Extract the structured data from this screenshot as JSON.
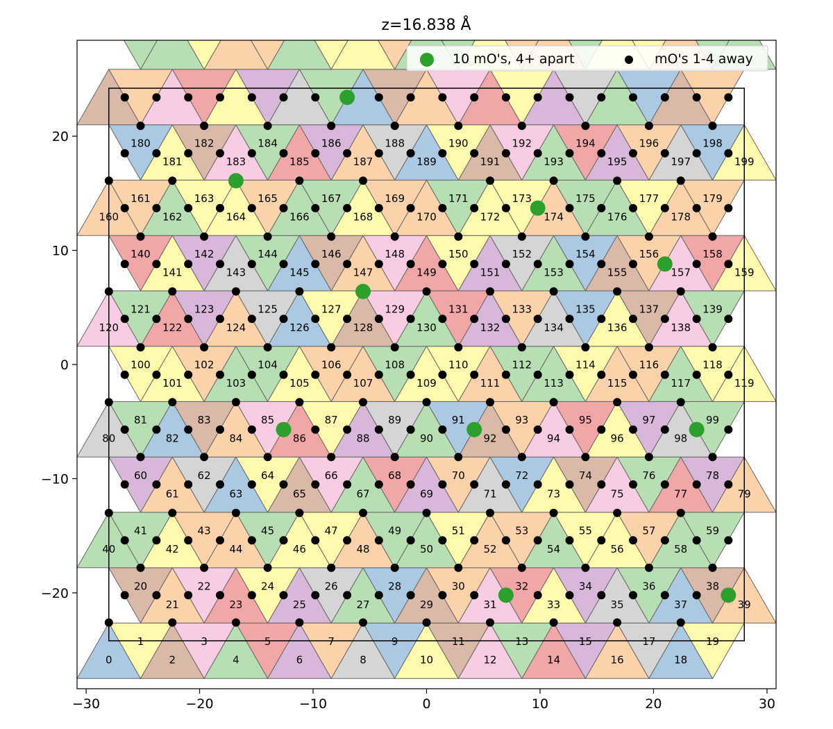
{
  "chart_data": {
    "type": "scatter",
    "title": "z=16.838 Å",
    "xlim": [
      -30.8,
      30.8
    ],
    "ylim": [
      -28.4,
      28.4
    ],
    "xticks": [
      -30,
      -20,
      -10,
      0,
      10,
      20,
      30
    ],
    "yticks": [
      -20,
      -10,
      0,
      10,
      20
    ],
    "xtick_labels": [
      "−30",
      "−20",
      "−10",
      "0",
      "10",
      "20",
      "30"
    ],
    "ytick_labels": [
      "−20",
      "−10",
      "0",
      "10",
      "20"
    ],
    "cell_box": {
      "x": [
        -28.0,
        28.0
      ],
      "y": [
        -24.2,
        24.2
      ]
    },
    "triangle_lattice": {
      "triangle_side": 5.6,
      "row_height": 4.85,
      "rows": 13,
      "first_row_base_y": -27.5,
      "triangles_per_row": 20,
      "first_triangle_left_x": -30.8,
      "row_shift_per_row": 0.5,
      "label_count": 200,
      "palette": [
        "#a6c6e0",
        "#b4dcb0",
        "#d3d3d3",
        "#f8c9e2",
        "#fbd0a4",
        "#d8b5a3",
        "#d6b3d8",
        "#fffbaa",
        "#f0a2a2"
      ],
      "fill_alpha": 0.95,
      "edge_color": "#666666"
    },
    "series": [
      {
        "name": "10 mO's, 4+ apart",
        "color": "#2ca02c",
        "marker": "large circle",
        "points": [
          [
            -7.0,
            23.4
          ],
          [
            -16.8,
            16.1
          ],
          [
            9.8,
            13.7
          ],
          [
            21.0,
            8.8
          ],
          [
            -5.6,
            6.4
          ],
          [
            -12.6,
            -5.7
          ],
          [
            4.2,
            -5.7
          ],
          [
            23.8,
            -5.7
          ],
          [
            7.0,
            -20.2
          ],
          [
            26.6,
            -20.2
          ]
        ]
      },
      {
        "name": "mO's 1-4 away",
        "color": "#000000",
        "marker": "small circle",
        "points": [
          [
            -26.6,
            23.4
          ],
          [
            -23.8,
            23.4
          ],
          [
            -21.0,
            23.4
          ],
          [
            -18.2,
            23.4
          ],
          [
            -15.4,
            23.4
          ],
          [
            -12.6,
            23.4
          ],
          [
            -9.8,
            23.4
          ],
          [
            -4.2,
            23.4
          ],
          [
            -1.4,
            23.4
          ],
          [
            1.4,
            23.4
          ],
          [
            4.2,
            23.4
          ],
          [
            7.0,
            23.4
          ],
          [
            9.8,
            23.4
          ],
          [
            12.6,
            23.4
          ],
          [
            15.4,
            23.4
          ],
          [
            18.2,
            23.4
          ],
          [
            21.0,
            23.4
          ],
          [
            23.8,
            23.4
          ],
          [
            26.6,
            23.4
          ],
          [
            -25.2,
            20.9
          ],
          [
            -19.6,
            20.9
          ],
          [
            -14.0,
            20.9
          ],
          [
            -8.4,
            20.9
          ],
          [
            -2.8,
            20.9
          ],
          [
            2.8,
            20.9
          ],
          [
            8.4,
            20.9
          ],
          [
            14.0,
            20.9
          ],
          [
            19.6,
            20.9
          ],
          [
            25.2,
            20.9
          ],
          [
            -26.6,
            18.5
          ],
          [
            -23.8,
            18.5
          ],
          [
            -21.0,
            18.5
          ],
          [
            -18.2,
            18.5
          ],
          [
            -15.4,
            18.5
          ],
          [
            -12.6,
            18.5
          ],
          [
            -9.8,
            18.5
          ],
          [
            -7.0,
            18.5
          ],
          [
            -4.2,
            18.5
          ],
          [
            -1.4,
            18.5
          ],
          [
            1.4,
            18.5
          ],
          [
            4.2,
            18.5
          ],
          [
            7.0,
            18.5
          ],
          [
            9.8,
            18.5
          ],
          [
            12.6,
            18.5
          ],
          [
            15.4,
            18.5
          ],
          [
            18.2,
            18.5
          ],
          [
            21.0,
            18.5
          ],
          [
            23.8,
            18.5
          ],
          [
            26.6,
            18.5
          ],
          [
            -28.0,
            16.1
          ],
          [
            -22.4,
            16.1
          ],
          [
            -11.2,
            16.1
          ],
          [
            -5.6,
            16.1
          ],
          [
            5.6,
            16.1
          ],
          [
            11.2,
            16.1
          ],
          [
            16.8,
            16.1
          ],
          [
            22.4,
            16.1
          ],
          [
            -26.6,
            13.7
          ],
          [
            -23.8,
            13.7
          ],
          [
            -21.0,
            13.7
          ],
          [
            -18.2,
            13.7
          ],
          [
            -15.4,
            13.7
          ],
          [
            -12.6,
            13.7
          ],
          [
            -9.8,
            13.7
          ],
          [
            -7.0,
            13.7
          ],
          [
            -4.2,
            13.7
          ],
          [
            -1.4,
            13.7
          ],
          [
            1.4,
            13.7
          ],
          [
            4.2,
            13.7
          ],
          [
            7.0,
            13.7
          ],
          [
            12.6,
            13.7
          ],
          [
            15.4,
            13.7
          ],
          [
            18.2,
            13.7
          ],
          [
            21.0,
            13.7
          ],
          [
            23.8,
            13.7
          ],
          [
            26.6,
            13.7
          ],
          [
            -25.2,
            11.2
          ],
          [
            -19.6,
            11.2
          ],
          [
            -14.0,
            11.2
          ],
          [
            -8.4,
            11.2
          ],
          [
            -2.8,
            11.2
          ],
          [
            2.8,
            11.2
          ],
          [
            8.4,
            11.2
          ],
          [
            14.0,
            11.2
          ],
          [
            19.6,
            11.2
          ],
          [
            25.2,
            11.2
          ],
          [
            -26.6,
            8.8
          ],
          [
            -23.8,
            8.8
          ],
          [
            -21.0,
            8.8
          ],
          [
            -18.2,
            8.8
          ],
          [
            -15.4,
            8.8
          ],
          [
            -12.6,
            8.8
          ],
          [
            -9.8,
            8.8
          ],
          [
            -7.0,
            8.8
          ],
          [
            -4.2,
            8.8
          ],
          [
            -1.4,
            8.8
          ],
          [
            1.4,
            8.8
          ],
          [
            4.2,
            8.8
          ],
          [
            7.0,
            8.8
          ],
          [
            9.8,
            8.8
          ],
          [
            12.6,
            8.8
          ],
          [
            15.4,
            8.8
          ],
          [
            18.2,
            8.8
          ],
          [
            23.8,
            8.8
          ],
          [
            26.6,
            8.8
          ],
          [
            -28.0,
            6.4
          ],
          [
            -22.4,
            6.4
          ],
          [
            -16.8,
            6.4
          ],
          [
            -11.2,
            6.4
          ],
          [
            0.0,
            6.4
          ],
          [
            5.6,
            6.4
          ],
          [
            11.2,
            6.4
          ],
          [
            16.8,
            6.4
          ],
          [
            22.4,
            6.4
          ],
          [
            -26.6,
            4.0
          ],
          [
            -23.8,
            4.0
          ],
          [
            -21.0,
            4.0
          ],
          [
            -18.2,
            4.0
          ],
          [
            -15.4,
            4.0
          ],
          [
            -12.6,
            4.0
          ],
          [
            -9.8,
            4.0
          ],
          [
            -7.0,
            4.0
          ],
          [
            -4.2,
            4.0
          ],
          [
            -1.4,
            4.0
          ],
          [
            1.4,
            4.0
          ],
          [
            4.2,
            4.0
          ],
          [
            7.0,
            4.0
          ],
          [
            9.8,
            4.0
          ],
          [
            12.6,
            4.0
          ],
          [
            15.4,
            4.0
          ],
          [
            18.2,
            4.0
          ],
          [
            21.0,
            4.0
          ],
          [
            23.8,
            4.0
          ],
          [
            26.6,
            4.0
          ],
          [
            -25.2,
            1.5
          ],
          [
            -19.6,
            1.5
          ],
          [
            -14.0,
            1.5
          ],
          [
            -8.4,
            1.5
          ],
          [
            -2.8,
            1.5
          ],
          [
            2.8,
            1.5
          ],
          [
            8.4,
            1.5
          ],
          [
            14.0,
            1.5
          ],
          [
            19.6,
            1.5
          ],
          [
            25.2,
            1.5
          ],
          [
            -26.6,
            -0.9
          ],
          [
            -23.8,
            -0.9
          ],
          [
            -21.0,
            -0.9
          ],
          [
            -18.2,
            -0.9
          ],
          [
            -15.4,
            -0.9
          ],
          [
            -12.6,
            -0.9
          ],
          [
            -9.8,
            -0.9
          ],
          [
            -7.0,
            -0.9
          ],
          [
            -4.2,
            -0.9
          ],
          [
            -1.4,
            -0.9
          ],
          [
            1.4,
            -0.9
          ],
          [
            4.2,
            -0.9
          ],
          [
            7.0,
            -0.9
          ],
          [
            9.8,
            -0.9
          ],
          [
            12.6,
            -0.9
          ],
          [
            15.4,
            -0.9
          ],
          [
            18.2,
            -0.9
          ],
          [
            21.0,
            -0.9
          ],
          [
            23.8,
            -0.9
          ],
          [
            26.6,
            -0.9
          ],
          [
            -28.0,
            -3.3
          ],
          [
            -22.4,
            -3.3
          ],
          [
            -16.8,
            -3.3
          ],
          [
            -11.2,
            -3.3
          ],
          [
            -5.6,
            -3.3
          ],
          [
            0.0,
            -3.3
          ],
          [
            5.6,
            -3.3
          ],
          [
            11.2,
            -3.3
          ],
          [
            16.8,
            -3.3
          ],
          [
            22.4,
            -3.3
          ],
          [
            -26.6,
            -5.7
          ],
          [
            -23.8,
            -5.7
          ],
          [
            -21.0,
            -5.7
          ],
          [
            -18.2,
            -5.7
          ],
          [
            -15.4,
            -5.7
          ],
          [
            -9.8,
            -5.7
          ],
          [
            -7.0,
            -5.7
          ],
          [
            -4.2,
            -5.7
          ],
          [
            -1.4,
            -5.7
          ],
          [
            1.4,
            -5.7
          ],
          [
            7.0,
            -5.7
          ],
          [
            9.8,
            -5.7
          ],
          [
            12.6,
            -5.7
          ],
          [
            15.4,
            -5.7
          ],
          [
            18.2,
            -5.7
          ],
          [
            21.0,
            -5.7
          ],
          [
            26.6,
            -5.7
          ],
          [
            -25.2,
            -8.1
          ],
          [
            -19.6,
            -8.1
          ],
          [
            -14.0,
            -8.1
          ],
          [
            -8.4,
            -8.1
          ],
          [
            -2.8,
            -8.1
          ],
          [
            2.8,
            -8.1
          ],
          [
            8.4,
            -8.1
          ],
          [
            14.0,
            -8.1
          ],
          [
            19.6,
            -8.1
          ],
          [
            25.2,
            -8.1
          ],
          [
            -26.6,
            -10.5
          ],
          [
            -23.8,
            -10.5
          ],
          [
            -21.0,
            -10.5
          ],
          [
            -18.2,
            -10.5
          ],
          [
            -15.4,
            -10.5
          ],
          [
            -12.6,
            -10.5
          ],
          [
            -9.8,
            -10.5
          ],
          [
            -7.0,
            -10.5
          ],
          [
            -4.2,
            -10.5
          ],
          [
            -1.4,
            -10.5
          ],
          [
            1.4,
            -10.5
          ],
          [
            4.2,
            -10.5
          ],
          [
            7.0,
            -10.5
          ],
          [
            9.8,
            -10.5
          ],
          [
            12.6,
            -10.5
          ],
          [
            15.4,
            -10.5
          ],
          [
            18.2,
            -10.5
          ],
          [
            21.0,
            -10.5
          ],
          [
            23.8,
            -10.5
          ],
          [
            26.6,
            -10.5
          ],
          [
            -28.0,
            -13.0
          ],
          [
            -22.4,
            -13.0
          ],
          [
            -16.8,
            -13.0
          ],
          [
            -11.2,
            -13.0
          ],
          [
            -5.6,
            -13.0
          ],
          [
            0.0,
            -13.0
          ],
          [
            5.6,
            -13.0
          ],
          [
            11.2,
            -13.0
          ],
          [
            16.8,
            -13.0
          ],
          [
            22.4,
            -13.0
          ],
          [
            -26.6,
            -15.4
          ],
          [
            -23.8,
            -15.4
          ],
          [
            -21.0,
            -15.4
          ],
          [
            -18.2,
            -15.4
          ],
          [
            -15.4,
            -15.4
          ],
          [
            -12.6,
            -15.4
          ],
          [
            -9.8,
            -15.4
          ],
          [
            -7.0,
            -15.4
          ],
          [
            -4.2,
            -15.4
          ],
          [
            -1.4,
            -15.4
          ],
          [
            1.4,
            -15.4
          ],
          [
            4.2,
            -15.4
          ],
          [
            7.0,
            -15.4
          ],
          [
            9.8,
            -15.4
          ],
          [
            12.6,
            -15.4
          ],
          [
            15.4,
            -15.4
          ],
          [
            18.2,
            -15.4
          ],
          [
            21.0,
            -15.4
          ],
          [
            23.8,
            -15.4
          ],
          [
            26.6,
            -15.4
          ],
          [
            -25.2,
            -17.8
          ],
          [
            -19.6,
            -17.8
          ],
          [
            -14.0,
            -17.8
          ],
          [
            -8.4,
            -17.8
          ],
          [
            -2.8,
            -17.8
          ],
          [
            2.8,
            -17.8
          ],
          [
            8.4,
            -17.8
          ],
          [
            14.0,
            -17.8
          ],
          [
            19.6,
            -17.8
          ],
          [
            25.2,
            -17.8
          ],
          [
            -26.6,
            -20.2
          ],
          [
            -23.8,
            -20.2
          ],
          [
            -21.0,
            -20.2
          ],
          [
            -18.2,
            -20.2
          ],
          [
            -15.4,
            -20.2
          ],
          [
            -12.6,
            -20.2
          ],
          [
            -9.8,
            -20.2
          ],
          [
            -7.0,
            -20.2
          ],
          [
            -4.2,
            -20.2
          ],
          [
            -1.4,
            -20.2
          ],
          [
            1.4,
            -20.2
          ],
          [
            4.2,
            -20.2
          ],
          [
            9.8,
            -20.2
          ],
          [
            12.6,
            -20.2
          ],
          [
            15.4,
            -20.2
          ],
          [
            18.2,
            -20.2
          ],
          [
            21.0,
            -20.2
          ],
          [
            23.8,
            -20.2
          ],
          [
            -28.0,
            -22.6
          ],
          [
            -22.4,
            -22.6
          ],
          [
            -16.8,
            -22.6
          ],
          [
            -11.2,
            -22.6
          ],
          [
            -5.6,
            -22.6
          ],
          [
            0.0,
            -22.6
          ],
          [
            5.6,
            -22.6
          ],
          [
            11.2,
            -22.6
          ],
          [
            16.8,
            -22.6
          ],
          [
            22.4,
            -22.6
          ]
        ]
      }
    ],
    "legend": {
      "placement": "top-right",
      "columns": 2
    }
  }
}
